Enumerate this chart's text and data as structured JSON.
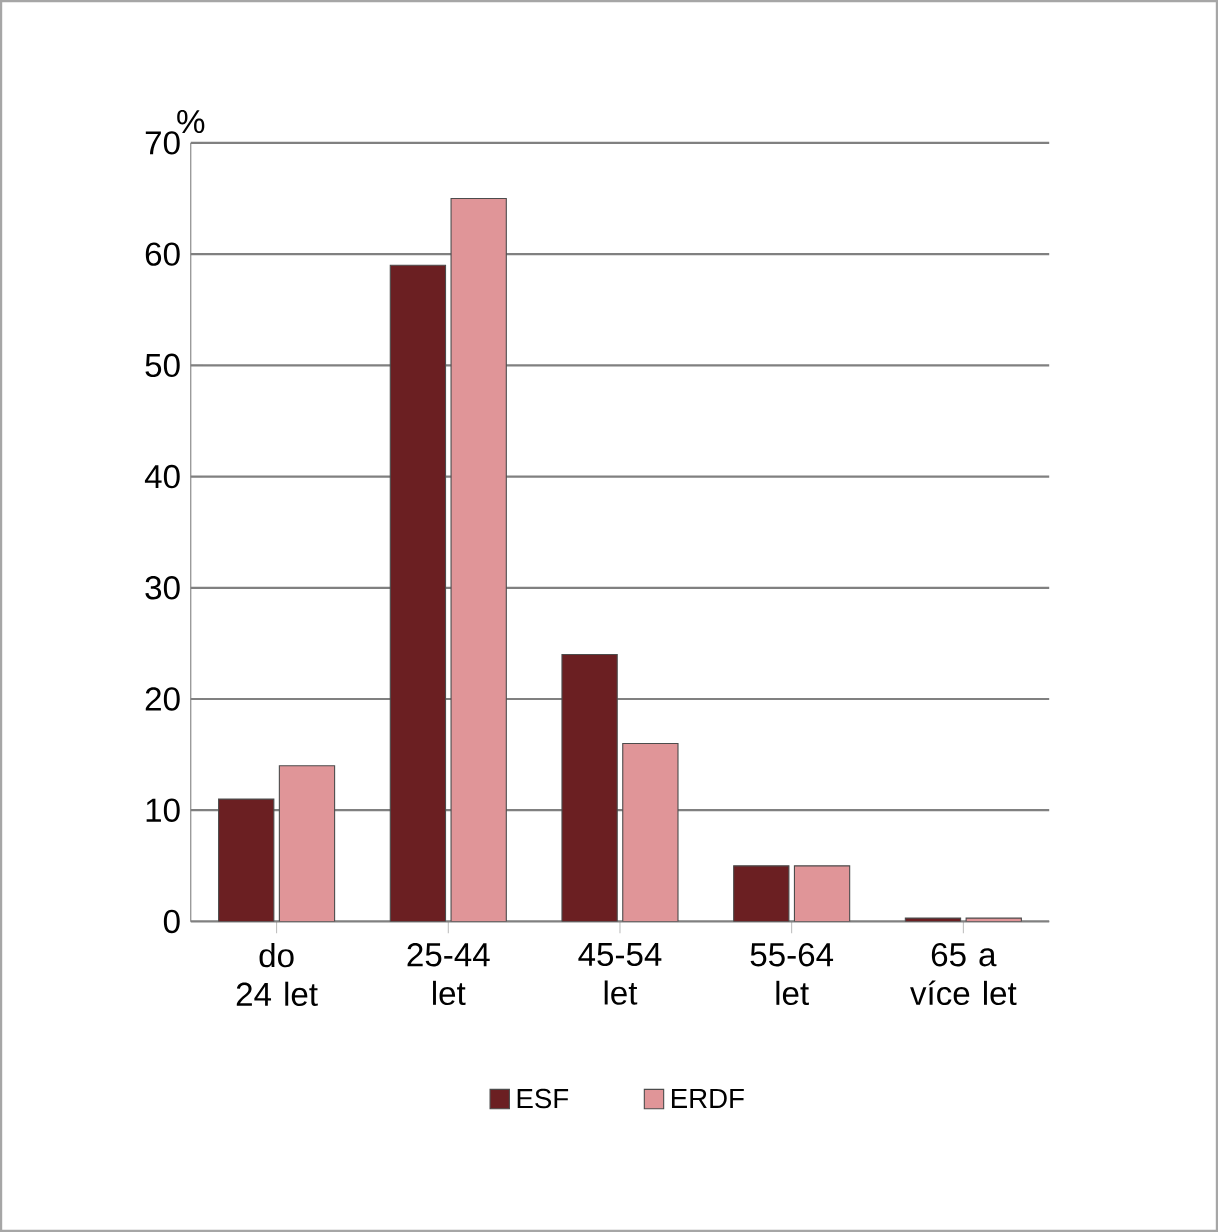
{
  "chart_data": {
    "type": "bar",
    "ylabel": "%",
    "categories": [
      "do 24 let",
      "25-44 let",
      "45-54 let",
      "55-64 let",
      "65 a více let"
    ],
    "series": [
      {
        "name": "ESF",
        "color": "#6b1f22",
        "values": [
          11,
          59,
          24,
          5,
          0.3
        ]
      },
      {
        "name": "ERDF",
        "color": "#e09598",
        "values": [
          14,
          65,
          16,
          5,
          0.3
        ]
      }
    ],
    "ylim": [
      0,
      70
    ],
    "yticks": [
      0,
      10,
      20,
      30,
      40,
      50,
      60,
      70
    ],
    "grid": "y",
    "legend": "bottom"
  }
}
